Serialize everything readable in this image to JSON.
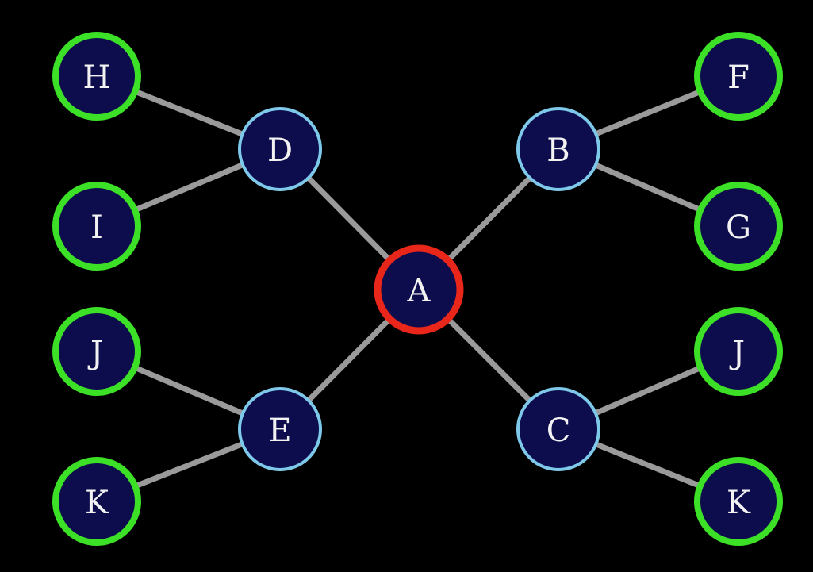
{
  "diagram": {
    "type": "tree-graph",
    "background_color": "#000000",
    "edge_color": "#9a9a9a",
    "node_fill": "#0d0d4d",
    "levels": {
      "root": {
        "stroke": "#e8261a"
      },
      "middle": {
        "stroke": "#7ec8ea"
      },
      "leaf": {
        "stroke": "#3be027"
      }
    },
    "nodes": [
      {
        "id": "A",
        "label": "A",
        "level": "root"
      },
      {
        "id": "B",
        "label": "B",
        "level": "middle"
      },
      {
        "id": "C",
        "label": "C",
        "level": "middle"
      },
      {
        "id": "D",
        "label": "D",
        "level": "middle"
      },
      {
        "id": "E",
        "label": "E",
        "level": "middle"
      },
      {
        "id": "H",
        "label": "H",
        "level": "leaf"
      },
      {
        "id": "I",
        "label": "I",
        "level": "leaf"
      },
      {
        "id": "J1",
        "label": "J",
        "level": "leaf"
      },
      {
        "id": "K1",
        "label": "K",
        "level": "leaf"
      },
      {
        "id": "F",
        "label": "F",
        "level": "leaf"
      },
      {
        "id": "G",
        "label": "G",
        "level": "leaf"
      },
      {
        "id": "J2",
        "label": "J",
        "level": "leaf"
      },
      {
        "id": "K2",
        "label": "K",
        "level": "leaf"
      }
    ],
    "edges": [
      [
        "A",
        "B"
      ],
      [
        "A",
        "C"
      ],
      [
        "A",
        "D"
      ],
      [
        "A",
        "E"
      ],
      [
        "D",
        "H"
      ],
      [
        "D",
        "I"
      ],
      [
        "E",
        "J1"
      ],
      [
        "E",
        "K1"
      ],
      [
        "B",
        "F"
      ],
      [
        "B",
        "G"
      ],
      [
        "C",
        "J2"
      ],
      [
        "C",
        "K2"
      ]
    ]
  }
}
